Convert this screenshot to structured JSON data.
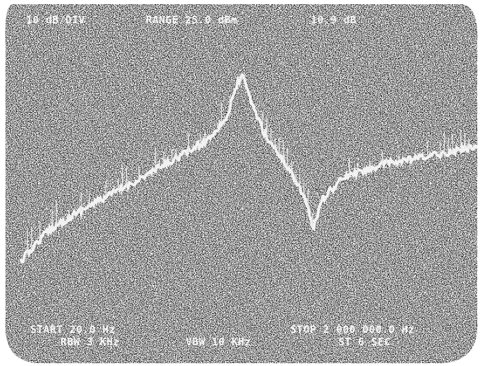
{
  "header": {
    "scale": "10 dB/DIV",
    "range": "RANGE 25.0 dBm",
    "marker_level": "10.9 dB"
  },
  "footer": {
    "start": "START 20.0 Hz",
    "rbw": "RBW 3 KHz",
    "vbw": "VBW 10 KHz",
    "stop": "STOP 2 000 000.0 Hz",
    "sweep": "ST 6 SEC"
  }
}
